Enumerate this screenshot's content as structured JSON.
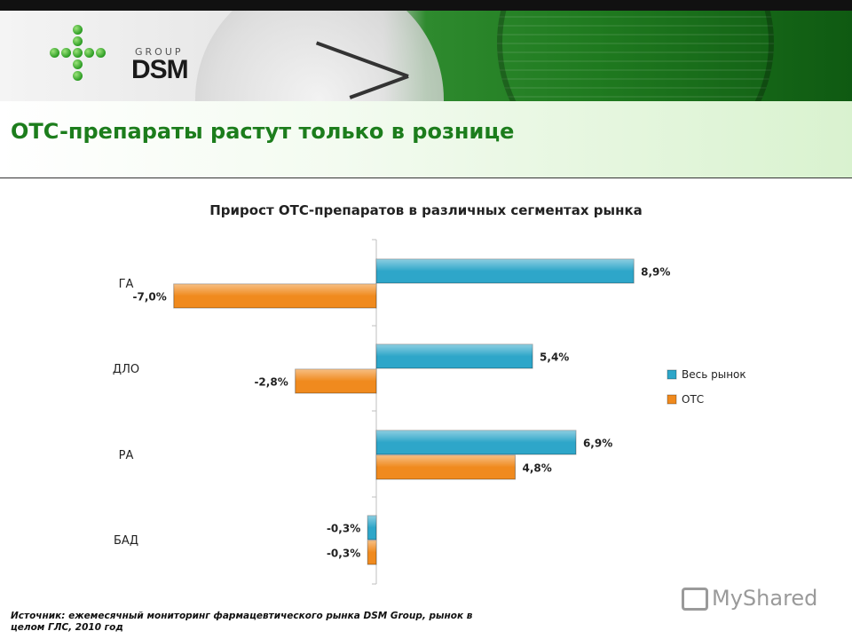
{
  "header": {
    "logo_group": "GROUP",
    "logo_dsm": "DSM",
    "title": "OTC-препараты растут только в рознице"
  },
  "colors": {
    "series_total": "#2ea6c9",
    "series_otc": "#f08a1e",
    "title_green": "#1c7d1c"
  },
  "chart_data": {
    "type": "bar",
    "orientation": "horizontal",
    "title": "Прирост ОТС-препаратов в различных сегментах рынка",
    "categories": [
      "ГА",
      "ДЛО",
      "РА",
      "БАД"
    ],
    "series": [
      {
        "name": "Весь рынок",
        "values": [
          8.9,
          5.4,
          6.9,
          -0.3
        ],
        "labels": [
          "8,9%",
          "5,4%",
          "6,9%",
          "-0,3%"
        ]
      },
      {
        "name": "ОТС",
        "values": [
          -7.0,
          -2.8,
          4.8,
          -0.3
        ],
        "labels": [
          "-7,0%",
          "-2,8%",
          "4,8%",
          "-0,3%"
        ]
      }
    ],
    "xlim": [
      -7.0,
      8.9
    ],
    "grid": false,
    "legend": "right"
  },
  "footer": {
    "source": "Источник: ежемесячный мониторинг фармацевтического рынка DSM Group, рынок в целом ГЛС, 2010 год"
  },
  "watermark": "MyShared"
}
